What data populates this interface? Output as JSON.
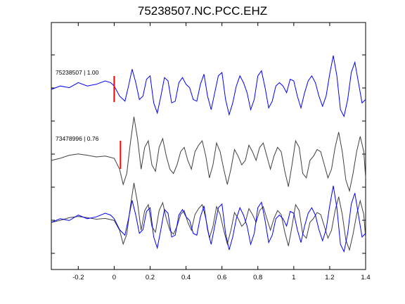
{
  "chart_data": {
    "type": "line",
    "title": "75238507.NC.PCC.EHZ",
    "xlabel": "",
    "ylabel": "",
    "xlim": [
      -0.35,
      1.4
    ],
    "x_ticks": [
      "-0.2",
      "0",
      "0.2",
      "0.4",
      "0.6",
      "0.8",
      "1",
      "1.2",
      "1.4"
    ],
    "x_tick_values": [
      -0.2,
      0,
      0.2,
      0.4,
      0.6,
      0.8,
      1.0,
      1.2,
      1.4
    ],
    "grid": false,
    "traces": [
      {
        "label": "75238507 | 1.00",
        "color": "#0000ff",
        "pick_time": 0.0,
        "pick_color": "#ff0000",
        "x": [
          -0.35,
          -0.3,
          -0.25,
          -0.2,
          -0.15,
          -0.1,
          -0.05,
          -0.02,
          0.0,
          0.03,
          0.06,
          0.08,
          0.1,
          0.12,
          0.14,
          0.16,
          0.18,
          0.2,
          0.22,
          0.24,
          0.26,
          0.28,
          0.3,
          0.32,
          0.34,
          0.36,
          0.38,
          0.4,
          0.42,
          0.44,
          0.46,
          0.48,
          0.5,
          0.52,
          0.54,
          0.56,
          0.58,
          0.6,
          0.62,
          0.64,
          0.66,
          0.68,
          0.7,
          0.72,
          0.74,
          0.76,
          0.78,
          0.8,
          0.82,
          0.84,
          0.86,
          0.88,
          0.9,
          0.92,
          0.94,
          0.96,
          0.98,
          1.0,
          1.02,
          1.04,
          1.06,
          1.08,
          1.1,
          1.12,
          1.14,
          1.16,
          1.18,
          1.2,
          1.22,
          1.24,
          1.26,
          1.28,
          1.3,
          1.32,
          1.34,
          1.36,
          1.38,
          1.4
        ],
        "y": [
          0.0,
          0.1,
          0.05,
          0.2,
          0.1,
          0.15,
          0.25,
          0.2,
          0.1,
          -0.2,
          -0.35,
          0.1,
          0.6,
          0.2,
          -0.3,
          -0.2,
          0.3,
          0.4,
          -0.4,
          -0.7,
          -0.2,
          0.35,
          0.25,
          -0.4,
          -0.35,
          0.2,
          0.35,
          0.15,
          0.05,
          -0.3,
          -0.35,
          0.15,
          0.45,
          -0.2,
          -0.6,
          -0.1,
          0.4,
          0.5,
          -0.3,
          -0.75,
          -0.4,
          0.1,
          0.4,
          0.2,
          -0.1,
          -0.6,
          -0.3,
          0.4,
          0.55,
          0.05,
          -0.55,
          -0.35,
          0.1,
          0.2,
          0.1,
          -0.1,
          0.3,
          0.25,
          -0.2,
          -0.55,
          -0.1,
          0.25,
          0.4,
          0.2,
          -0.2,
          -0.5,
          -0.2,
          0.45,
          1.0,
          0.4,
          -0.6,
          -0.8,
          -0.3,
          0.5,
          0.8,
          0.2,
          -0.4,
          -0.3
        ]
      },
      {
        "label": "73478996 | 0.76",
        "color": "#404040",
        "pick_time": 0.035,
        "pick_color": "#ff0000",
        "x": [
          -0.35,
          -0.3,
          -0.25,
          -0.2,
          -0.15,
          -0.1,
          -0.05,
          0.0,
          0.03,
          0.05,
          0.07,
          0.09,
          0.11,
          0.13,
          0.15,
          0.17,
          0.19,
          0.21,
          0.23,
          0.25,
          0.27,
          0.29,
          0.31,
          0.33,
          0.35,
          0.37,
          0.39,
          0.41,
          0.43,
          0.45,
          0.47,
          0.49,
          0.51,
          0.53,
          0.55,
          0.57,
          0.59,
          0.61,
          0.63,
          0.65,
          0.67,
          0.69,
          0.71,
          0.73,
          0.75,
          0.77,
          0.79,
          0.81,
          0.83,
          0.85,
          0.87,
          0.89,
          0.91,
          0.93,
          0.95,
          0.97,
          0.99,
          1.01,
          1.03,
          1.05,
          1.07,
          1.09,
          1.11,
          1.13,
          1.15,
          1.17,
          1.19,
          1.21,
          1.23,
          1.25,
          1.27,
          1.29,
          1.31,
          1.33,
          1.35,
          1.37,
          1.39,
          1.4
        ],
        "y": [
          0.0,
          0.05,
          0.12,
          0.15,
          0.12,
          0.08,
          0.1,
          0.05,
          -0.2,
          -0.55,
          -0.3,
          0.4,
          1.0,
          0.5,
          -0.2,
          0.3,
          0.45,
          -0.1,
          -0.25,
          0.3,
          0.5,
          0.1,
          -0.2,
          -0.3,
          -0.1,
          0.2,
          0.3,
          0.0,
          -0.2,
          0.2,
          0.35,
          0.45,
          0.1,
          -0.4,
          -0.1,
          0.4,
          0.2,
          -0.2,
          -0.55,
          -0.2,
          0.25,
          0.1,
          -0.1,
          0.0,
          0.35,
          0.2,
          0.0,
          0.3,
          0.4,
          0.1,
          -0.2,
          0.1,
          0.3,
          0.2,
          -0.25,
          -0.6,
          -0.1,
          0.45,
          0.3,
          -0.3,
          -0.4,
          0.0,
          0.1,
          0.25,
          0.2,
          -0.1,
          -0.4,
          -0.2,
          0.3,
          0.65,
          0.2,
          -0.45,
          -0.7,
          -0.3,
          0.2,
          0.55,
          0.2,
          -0.4
        ]
      }
    ]
  }
}
